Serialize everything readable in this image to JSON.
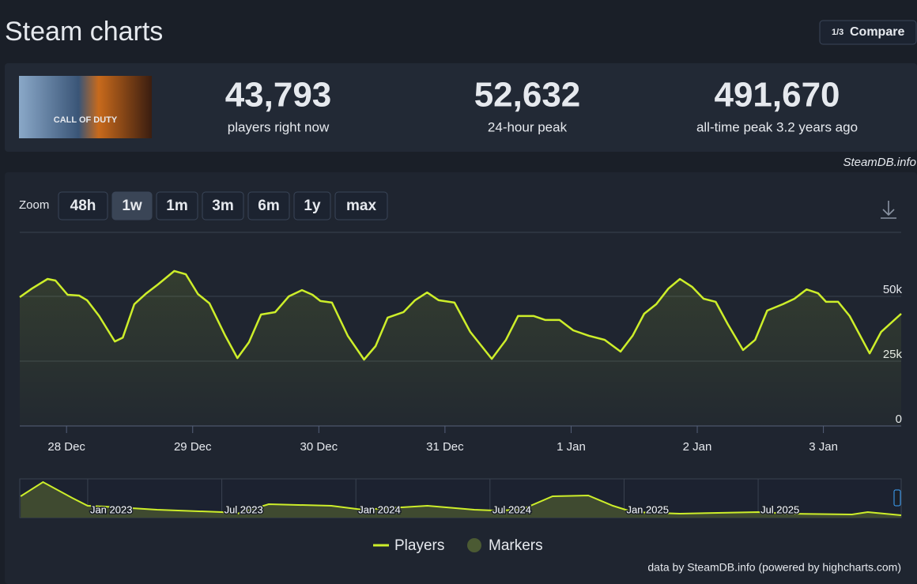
{
  "header": {
    "title": "Steam charts",
    "compare": "Compare",
    "compare_icon": "1/3"
  },
  "game": {
    "logo": "CALL OF DUTY"
  },
  "stats": [
    {
      "value": "43,793",
      "label": "players right now"
    },
    {
      "value": "52,632",
      "label": "24-hour peak"
    },
    {
      "value": "491,670",
      "label": "all-time peak 3.2 years ago"
    }
  ],
  "source": "SteamDB.info",
  "zoom": {
    "label": "Zoom",
    "options": [
      "48h",
      "1w",
      "1m",
      "3m",
      "6m",
      "1y",
      "max"
    ],
    "selected": "1w"
  },
  "chart_data": {
    "type": "line",
    "x": [
      -8.9,
      -6.6,
      -3.6,
      -2.1,
      0.2,
      2.4,
      3.9,
      6.2,
      9.2,
      10.7,
      12.9,
      15.2,
      17.4,
      20.5,
      22.7,
      25.0,
      27.2,
      30.2,
      32.5,
      34.7,
      37.0,
      39.7,
      42.3,
      44.8,
      46.8,
      48.3,
      50.5,
      53.5,
      56.6,
      58.8,
      61.1,
      64.1,
      66.3,
      68.6,
      70.8,
      73.8,
      76.8,
      80.9,
      83.6,
      85.9,
      88.9,
      91.1,
      93.8,
      96.4,
      99.4,
      102.4,
      105.4,
      107.7,
      109.9,
      112.2,
      114.5,
      116.7,
      119.0,
      121.2,
      123.5,
      125.8,
      128.7,
      131.0,
      133.3,
      136.3,
      138.5,
      140.8,
      143.0,
      144.5,
      146.8,
      149.0,
      152.8,
      155.0,
      158.8
    ],
    "series": [
      {
        "name": "Players",
        "color": "#cdee2a",
        "values": [
          49700,
          53000,
          56700,
          56100,
          50600,
          50300,
          48500,
          42400,
          32600,
          34100,
          47000,
          51200,
          54600,
          59800,
          58500,
          50900,
          47300,
          34800,
          26200,
          32300,
          43000,
          43900,
          50000,
          52400,
          50600,
          48200,
          47600,
          34800,
          25600,
          30800,
          41800,
          43900,
          48500,
          51500,
          48500,
          47600,
          36300,
          25900,
          33200,
          42400,
          42400,
          40900,
          40900,
          36900,
          34800,
          33200,
          28700,
          34800,
          43300,
          47000,
          53000,
          56700,
          53700,
          49100,
          47900,
          39300,
          29300,
          33200,
          44500,
          47000,
          49100,
          52700,
          51200,
          47900,
          47900,
          42400,
          28000,
          36300,
          43300
        ]
      }
    ],
    "xlim": [
      -8.9,
      158.8
    ],
    "xticks": [
      {
        "value": 0,
        "label": "28 Dec"
      },
      {
        "value": 24,
        "label": "29 Dec"
      },
      {
        "value": 48,
        "label": "30 Dec"
      },
      {
        "value": 72,
        "label": "31 Dec"
      },
      {
        "value": 96,
        "label": "1 Jan"
      },
      {
        "value": 120,
        "label": "2 Jan"
      },
      {
        "value": 144,
        "label": "3 Jan"
      }
    ],
    "ylim": [
      0,
      74700
    ],
    "yticks": [
      0,
      {
        "value": 25000,
        "label": "25k"
      },
      {
        "value": 50000,
        "label": "50k"
      }
    ],
    "grid": true
  },
  "navigator": {
    "type": "area",
    "x": [
      -3.0,
      -2.0,
      -0.7,
      0,
      1.4,
      3.1,
      6.0,
      6.7,
      8.1,
      10.9,
      12.3,
      15.2,
      17.3,
      18.2,
      19.4,
      20.8,
      22.4,
      23.5,
      24.4,
      26.5,
      30.0,
      31.4,
      34.2,
      34.9,
      36.4
    ],
    "values": [
      275000,
      459000,
      255000,
      153000,
      133000,
      102000,
      71000,
      51000,
      173000,
      153000,
      102000,
      153000,
      102000,
      92000,
      102000,
      275000,
      286000,
      153000,
      71000,
      51000,
      71000,
      51000,
      41000,
      71000,
      31000
    ],
    "color": "#cdee2a",
    "xlim": [
      -3.04,
      36.4
    ],
    "ylim": [
      0,
      500000
    ],
    "xticks": [
      {
        "value": 0,
        "label": "Jan 2023"
      },
      {
        "value": 6,
        "label": "Jul 2023"
      },
      {
        "value": 12,
        "label": "Jan 2024"
      },
      {
        "value": 18,
        "label": "Jul 2024"
      },
      {
        "value": 24,
        "label": "Jan 2025"
      },
      {
        "value": 30,
        "label": "Jul 2025"
      }
    ]
  },
  "legend": {
    "items": [
      {
        "name": "Players",
        "color": "#cdee2a"
      },
      {
        "name": "Markers",
        "color": "#4b5a33"
      }
    ]
  },
  "credits": "data by SteamDB.info (powered by highcharts.com)"
}
